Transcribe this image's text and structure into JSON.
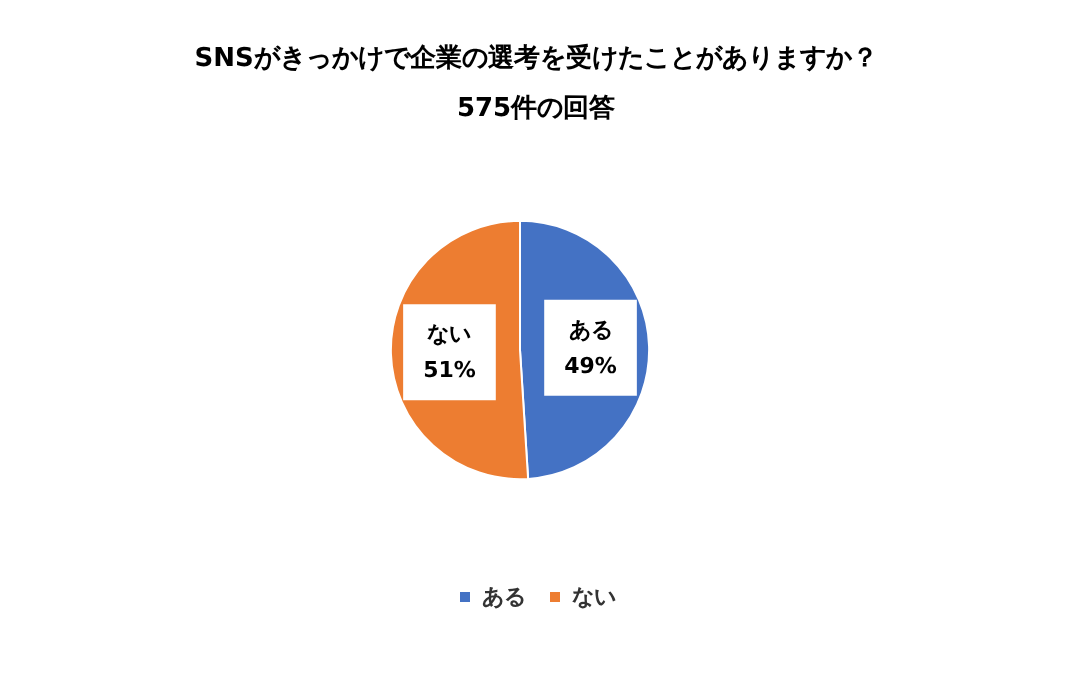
{
  "chart_data": {
    "type": "pie",
    "title": "SNSがきっかけで企業の選考を受けたことがありますか？",
    "subtitle": "575件の回答",
    "categories": [
      "ある",
      "ない"
    ],
    "values": [
      49,
      51
    ],
    "colors": [
      "#4472c4",
      "#ed7d31"
    ],
    "value_labels": [
      "49%",
      "51%"
    ],
    "legend": "bottom"
  }
}
